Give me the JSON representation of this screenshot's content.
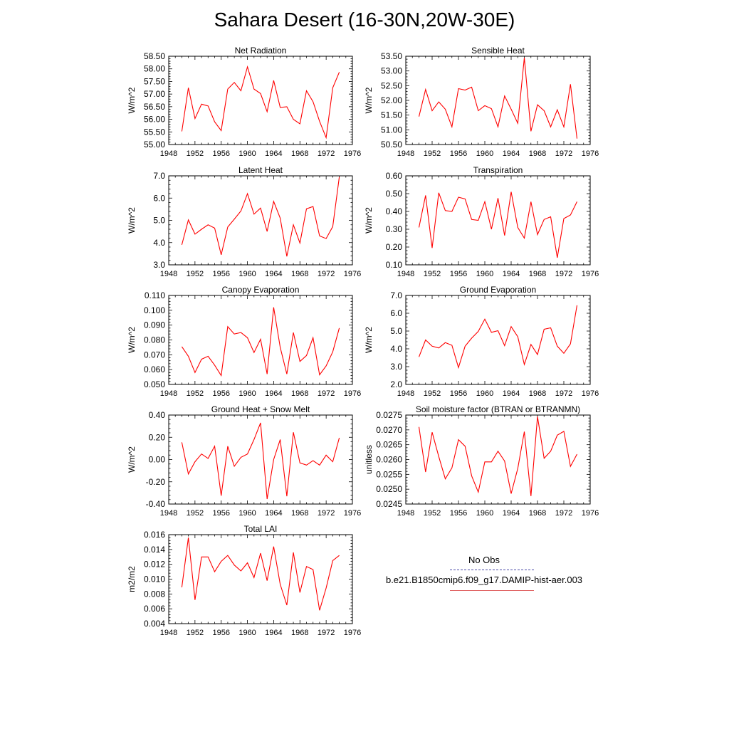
{
  "figure": {
    "title": "Sahara Desert (16-30N,20W-30E)"
  },
  "legend": {
    "entries": [
      {
        "label": "No Obs",
        "color": "#4a4aa8",
        "style": "dashed"
      },
      {
        "label": "b.e21.B1850cmip6.f09_g17.DAMIP-hist-aer.003",
        "color": "#e06060",
        "style": "solid"
      }
    ]
  },
  "chart_data": [
    {
      "type": "line",
      "title": "Net Radiation",
      "ylabel": "W/m^2",
      "xlim": [
        1948,
        1976
      ],
      "ylim": [
        55.0,
        58.5
      ],
      "xticks": [
        "1948",
        "1952",
        "1956",
        "1960",
        "1964",
        "1968",
        "1972",
        "1976"
      ],
      "yticks": [
        "55.00",
        "55.50",
        "56.00",
        "56.50",
        "57.00",
        "57.50",
        "58.00",
        "58.50"
      ],
      "series": [
        {
          "color": "#ff0000",
          "x": [
            1950,
            1951,
            1952,
            1953,
            1954,
            1955,
            1956,
            1957,
            1958,
            1959,
            1960,
            1961,
            1962,
            1963,
            1964,
            1965,
            1966,
            1967,
            1968,
            1969,
            1970,
            1971,
            1972,
            1973,
            1974
          ],
          "values": [
            55.52,
            57.25,
            56.03,
            56.6,
            56.53,
            55.9,
            55.55,
            57.2,
            57.46,
            57.13,
            58.08,
            57.2,
            57.02,
            56.3,
            57.54,
            56.47,
            56.5,
            56.0,
            55.82,
            57.13,
            56.7,
            55.92,
            55.27,
            57.25,
            57.87
          ]
        }
      ]
    },
    {
      "type": "line",
      "title": "Sensible Heat",
      "ylabel": "W/m^2",
      "xlim": [
        1948,
        1976
      ],
      "ylim": [
        50.5,
        53.5
      ],
      "xticks": [
        "1948",
        "1952",
        "1956",
        "1960",
        "1964",
        "1968",
        "1972",
        "1976"
      ],
      "yticks": [
        "50.50",
        "51.00",
        "51.50",
        "52.00",
        "52.50",
        "53.00",
        "53.50"
      ],
      "series": [
        {
          "color": "#ff0000",
          "x": [
            1950,
            1951,
            1952,
            1953,
            1954,
            1955,
            1956,
            1957,
            1958,
            1959,
            1960,
            1961,
            1962,
            1963,
            1964,
            1965,
            1966,
            1967,
            1968,
            1969,
            1970,
            1971,
            1972,
            1973,
            1974
          ],
          "values": [
            51.45,
            52.37,
            51.65,
            51.95,
            51.7,
            51.1,
            52.4,
            52.35,
            52.45,
            51.65,
            51.82,
            51.72,
            51.1,
            52.15,
            51.7,
            51.22,
            53.45,
            50.95,
            51.85,
            51.65,
            51.1,
            51.68,
            51.1,
            52.55,
            50.7
          ]
        }
      ]
    },
    {
      "type": "line",
      "title": "Latent Heat",
      "ylabel": "W/m^2",
      "xlim": [
        1948,
        1976
      ],
      "ylim": [
        3.0,
        7.0
      ],
      "xticks": [
        "1948",
        "1952",
        "1956",
        "1960",
        "1964",
        "1968",
        "1972",
        "1976"
      ],
      "yticks": [
        "3.0",
        "4.0",
        "5.0",
        "6.0",
        "7.0"
      ],
      "series": [
        {
          "color": "#ff0000",
          "x": [
            1950,
            1951,
            1952,
            1953,
            1954,
            1955,
            1956,
            1957,
            1958,
            1959,
            1960,
            1961,
            1962,
            1963,
            1964,
            1965,
            1966,
            1967,
            1968,
            1969,
            1970,
            1971,
            1972,
            1973,
            1974
          ],
          "values": [
            3.9,
            5.02,
            4.38,
            4.6,
            4.8,
            4.65,
            3.45,
            4.7,
            5.05,
            5.42,
            6.2,
            5.28,
            5.55,
            4.5,
            5.85,
            5.1,
            3.38,
            4.8,
            3.98,
            5.52,
            5.62,
            4.3,
            4.18,
            4.72,
            6.95
          ]
        }
      ]
    },
    {
      "type": "line",
      "title": "Transpiration",
      "ylabel": "W/m^2",
      "xlim": [
        1948,
        1976
      ],
      "ylim": [
        0.1,
        0.6
      ],
      "xticks": [
        "1948",
        "1952",
        "1956",
        "1960",
        "1964",
        "1968",
        "1972",
        "1976"
      ],
      "yticks": [
        "0.10",
        "0.20",
        "0.30",
        "0.40",
        "0.50",
        "0.60"
      ],
      "series": [
        {
          "color": "#ff0000",
          "x": [
            1950,
            1951,
            1952,
            1953,
            1954,
            1955,
            1956,
            1957,
            1958,
            1959,
            1960,
            1961,
            1962,
            1963,
            1964,
            1965,
            1966,
            1967,
            1968,
            1969,
            1970,
            1971,
            1972,
            1973,
            1974
          ],
          "values": [
            0.31,
            0.49,
            0.195,
            0.505,
            0.405,
            0.4,
            0.48,
            0.47,
            0.355,
            0.35,
            0.455,
            0.3,
            0.475,
            0.265,
            0.51,
            0.31,
            0.25,
            0.455,
            0.27,
            0.355,
            0.37,
            0.14,
            0.36,
            0.38,
            0.455
          ]
        }
      ]
    },
    {
      "type": "line",
      "title": "Canopy Evaporation",
      "ylabel": "W/m^2",
      "xlim": [
        1948,
        1976
      ],
      "ylim": [
        0.05,
        0.11
      ],
      "xticks": [
        "1948",
        "1952",
        "1956",
        "1960",
        "1964",
        "1968",
        "1972",
        "1976"
      ],
      "yticks": [
        "0.050",
        "0.060",
        "0.070",
        "0.080",
        "0.090",
        "0.100",
        "0.110"
      ],
      "series": [
        {
          "color": "#ff0000",
          "x": [
            1950,
            1951,
            1952,
            1953,
            1954,
            1955,
            1956,
            1957,
            1958,
            1959,
            1960,
            1961,
            1962,
            1963,
            1964,
            1965,
            1966,
            1967,
            1968,
            1969,
            1970,
            1971,
            1972,
            1973,
            1974
          ],
          "values": [
            0.0755,
            0.069,
            0.058,
            0.067,
            0.069,
            0.063,
            0.056,
            0.089,
            0.084,
            0.085,
            0.0815,
            0.0715,
            0.0805,
            0.057,
            0.102,
            0.075,
            0.057,
            0.085,
            0.0655,
            0.0695,
            0.0815,
            0.0565,
            0.0625,
            0.072,
            0.088
          ]
        }
      ]
    },
    {
      "type": "line",
      "title": "Ground Evaporation",
      "ylabel": "W/m^2",
      "xlim": [
        1948,
        1976
      ],
      "ylim": [
        2.0,
        7.0
      ],
      "xticks": [
        "1948",
        "1952",
        "1956",
        "1960",
        "1964",
        "1968",
        "1972",
        "1976"
      ],
      "yticks": [
        "2.0",
        "3.0",
        "4.0",
        "5.0",
        "6.0",
        "7.0"
      ],
      "series": [
        {
          "color": "#ff0000",
          "x": [
            1950,
            1951,
            1952,
            1953,
            1954,
            1955,
            1956,
            1957,
            1958,
            1959,
            1960,
            1961,
            1962,
            1963,
            1964,
            1965,
            1966,
            1967,
            1968,
            1969,
            1970,
            1971,
            1972,
            1973,
            1974
          ],
          "values": [
            3.55,
            4.5,
            4.15,
            4.05,
            4.35,
            4.2,
            2.95,
            4.15,
            4.6,
            4.98,
            5.67,
            4.93,
            5.02,
            4.18,
            5.25,
            4.68,
            3.12,
            4.25,
            3.68,
            5.1,
            5.18,
            4.15,
            3.75,
            4.28,
            6.45
          ]
        }
      ]
    },
    {
      "type": "line",
      "title": "Ground Heat + Snow Melt",
      "ylabel": "W/m^2",
      "xlim": [
        1948,
        1976
      ],
      "ylim": [
        -0.4,
        0.4
      ],
      "xticks": [
        "1948",
        "1952",
        "1956",
        "1960",
        "1964",
        "1968",
        "1972",
        "1976"
      ],
      "yticks": [
        "-0.40",
        "-0.20",
        "0.00",
        "0.20",
        "0.40"
      ],
      "series": [
        {
          "color": "#ff0000",
          "x": [
            1950,
            1951,
            1952,
            1953,
            1954,
            1955,
            1956,
            1957,
            1958,
            1959,
            1960,
            1961,
            1962,
            1963,
            1964,
            1965,
            1966,
            1967,
            1968,
            1969,
            1970,
            1971,
            1972,
            1973,
            1974
          ],
          "values": [
            0.155,
            -0.13,
            -0.02,
            0.05,
            0.01,
            0.12,
            -0.325,
            0.12,
            -0.06,
            0.02,
            0.05,
            0.18,
            0.33,
            -0.355,
            0.0,
            0.18,
            -0.33,
            0.245,
            -0.03,
            -0.05,
            -0.01,
            -0.05,
            0.04,
            -0.02,
            0.195
          ]
        }
      ]
    },
    {
      "type": "line",
      "title": "Soil moisture factor (BTRAN or BTRANMN)",
      "ylabel": "unitless",
      "xlim": [
        1948,
        1976
      ],
      "ylim": [
        0.0245,
        0.0275
      ],
      "xticks": [
        "1948",
        "1952",
        "1956",
        "1960",
        "1964",
        "1968",
        "1972",
        "1976"
      ],
      "yticks": [
        "0.0245",
        "0.0250",
        "0.0255",
        "0.0260",
        "0.0265",
        "0.0270",
        "0.0275"
      ],
      "series": [
        {
          "color": "#ff0000",
          "x": [
            1950,
            1951,
            1952,
            1953,
            1954,
            1955,
            1956,
            1957,
            1958,
            1959,
            1960,
            1961,
            1962,
            1963,
            1964,
            1965,
            1966,
            1967,
            1968,
            1969,
            1970,
            1971,
            1972,
            1973,
            1974
          ],
          "values": [
            0.0271,
            0.02558,
            0.02692,
            0.0261,
            0.02535,
            0.02572,
            0.02667,
            0.02645,
            0.02545,
            0.0249,
            0.02592,
            0.02592,
            0.02628,
            0.02595,
            0.02485,
            0.0257,
            0.02694,
            0.02477,
            0.02745,
            0.02604,
            0.02628,
            0.02682,
            0.02695,
            0.02577,
            0.02618
          ]
        }
      ]
    },
    {
      "type": "line",
      "title": "Total LAI",
      "ylabel": "m2/m2",
      "xlim": [
        1948,
        1976
      ],
      "ylim": [
        0.004,
        0.016
      ],
      "xticks": [
        "1948",
        "1952",
        "1956",
        "1960",
        "1964",
        "1968",
        "1972",
        "1976"
      ],
      "yticks": [
        "0.004",
        "0.006",
        "0.008",
        "0.010",
        "0.012",
        "0.014",
        "0.016"
      ],
      "series": [
        {
          "color": "#ff0000",
          "x": [
            1950,
            1951,
            1952,
            1953,
            1954,
            1955,
            1956,
            1957,
            1958,
            1959,
            1960,
            1961,
            1962,
            1963,
            1964,
            1965,
            1966,
            1967,
            1968,
            1969,
            1970,
            1971,
            1972,
            1973,
            1974
          ],
          "values": [
            0.0089,
            0.0156,
            0.0072,
            0.013,
            0.013,
            0.011,
            0.0124,
            0.0132,
            0.0119,
            0.0111,
            0.0122,
            0.0102,
            0.0135,
            0.0098,
            0.0144,
            0.0093,
            0.0065,
            0.0136,
            0.0082,
            0.0117,
            0.0113,
            0.0058,
            0.0088,
            0.0125,
            0.0132
          ]
        }
      ]
    }
  ]
}
